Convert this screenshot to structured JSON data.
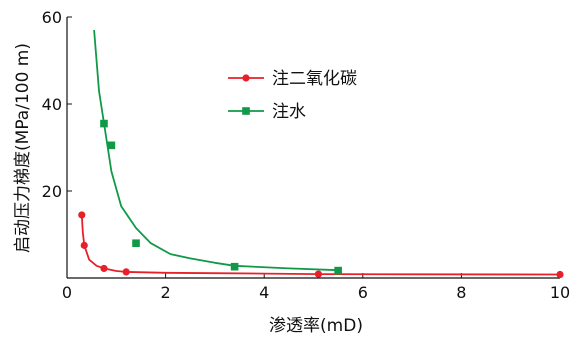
{
  "chart_data": {
    "type": "line",
    "xlabel": "渗透率(mD)",
    "ylabel": "启动压力梯度(MPa/100 m)",
    "xlim": [
      0,
      10
    ],
    "ylim": [
      0,
      60
    ],
    "xticks": [
      0,
      2,
      4,
      6,
      8,
      10
    ],
    "yticks": [
      20,
      40,
      60
    ],
    "grid": false,
    "legend_position": "upper-center",
    "series": [
      {
        "name": "注二氧化碳",
        "color": "#e8202a",
        "marker": "circle",
        "points": [
          [
            0.3,
            14.5
          ],
          [
            0.35,
            7.5
          ],
          [
            0.75,
            2.2
          ],
          [
            1.2,
            1.4
          ],
          [
            5.1,
            0.9
          ],
          [
            10.0,
            0.8
          ]
        ],
        "curve": [
          [
            0.3,
            14.5
          ],
          [
            0.32,
            10.5
          ],
          [
            0.35,
            7.5
          ],
          [
            0.45,
            4.2
          ],
          [
            0.6,
            2.8
          ],
          [
            0.75,
            2.2
          ],
          [
            1.0,
            1.6
          ],
          [
            1.2,
            1.4
          ],
          [
            2.0,
            1.2
          ],
          [
            3.0,
            1.1
          ],
          [
            4.0,
            1.0
          ],
          [
            5.1,
            0.9
          ],
          [
            7.0,
            0.85
          ],
          [
            10.0,
            0.8
          ]
        ]
      },
      {
        "name": "注水",
        "color": "#109a48",
        "marker": "square",
        "points": [
          [
            0.75,
            35.5
          ],
          [
            0.9,
            30.5
          ],
          [
            1.4,
            8.0
          ],
          [
            3.4,
            2.6
          ],
          [
            5.5,
            1.7
          ]
        ],
        "curve": [
          [
            0.55,
            57.0
          ],
          [
            0.65,
            43.0
          ],
          [
            0.8,
            32.0
          ],
          [
            0.9,
            24.5
          ],
          [
            1.1,
            16.5
          ],
          [
            1.4,
            11.5
          ],
          [
            1.7,
            8.0
          ],
          [
            2.1,
            5.5
          ],
          [
            2.5,
            4.5
          ],
          [
            3.0,
            3.5
          ],
          [
            3.4,
            2.8
          ],
          [
            4.5,
            2.2
          ],
          [
            5.5,
            1.8
          ]
        ]
      }
    ]
  }
}
